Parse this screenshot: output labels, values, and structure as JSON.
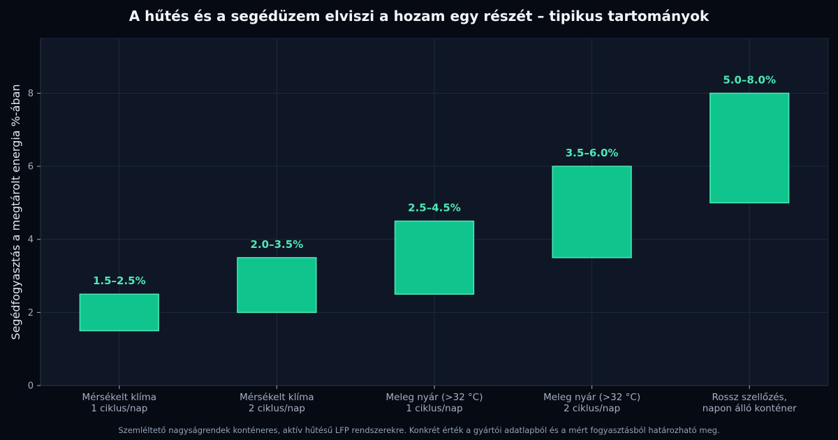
{
  "title": "A hűtés és a segédüzem elviszi a hozam egy részét – tipikus tartományok",
  "footnote": "Szemléltető nagyságrendek konténeres, aktív hűtésű LFP rendszerekre. Konkrét érték a gyártói adatlapból és a mért fogyasztásból határozható meg.",
  "colors": {
    "background": "#060a12",
    "plot_background": "#0f1626",
    "grid": "#1e2a3d",
    "bar_fill": "#10c48e",
    "bar_edge": "#4ee8b4",
    "data_label": "#4ee8b4",
    "text": "#f1f5f9",
    "muted_text": "#a3b0c2"
  },
  "chart_data": {
    "type": "bar",
    "subtype": "floating-range",
    "title": "A hűtés és a segédüzem elviszi a hozam egy részét – tipikus tartományok",
    "xlabel": "",
    "ylabel": "Segédfogyasztás a megtárolt energia %-ában",
    "ylim": [
      0,
      9.5
    ],
    "yticks": [
      0,
      2,
      4,
      6,
      8
    ],
    "grid": true,
    "categories": [
      [
        "Mérsékelt klíma",
        "1 ciklus/nap"
      ],
      [
        "Mérsékelt klíma",
        "2 ciklus/nap"
      ],
      [
        "Meleg nyár (>32 °C)",
        "1 ciklus/nap"
      ],
      [
        "Meleg nyár (>32 °C)",
        "2 ciklus/nap"
      ],
      [
        "Rossz szellőzés,",
        "napon álló konténer"
      ]
    ],
    "ranges": [
      [
        1.5,
        2.5
      ],
      [
        2.0,
        3.5
      ],
      [
        2.5,
        4.5
      ],
      [
        3.5,
        6.0
      ],
      [
        5.0,
        8.0
      ]
    ],
    "data_labels": [
      "1.5–2.5%",
      "2.0–3.5%",
      "2.5–4.5%",
      "3.5–6.0%",
      "5.0–8.0%"
    ]
  }
}
